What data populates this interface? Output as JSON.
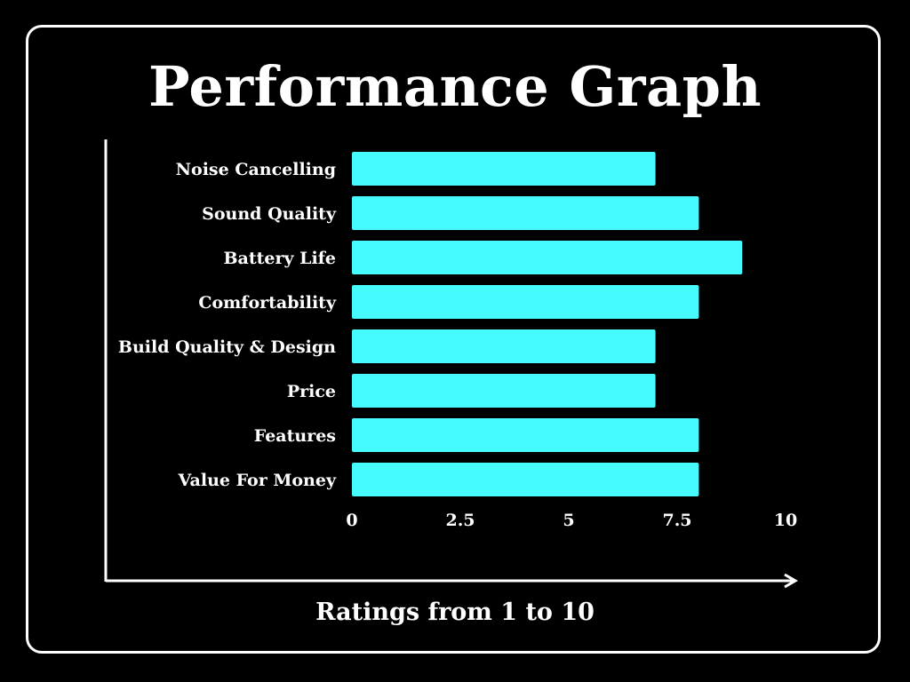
{
  "chart_data": {
    "type": "bar",
    "orientation": "horizontal",
    "title": "Performance Graph",
    "xlabel": "Ratings from 1 to 10",
    "ylabel": "",
    "categories": [
      "Noise Cancelling",
      "Sound Quality",
      "Battery Life",
      "Comfortability",
      "Build Quality & Design",
      "Price",
      "Features",
      "Value For Money"
    ],
    "values": [
      7,
      8,
      9,
      8,
      7,
      7,
      8,
      8
    ],
    "xlim": [
      0,
      10
    ],
    "xticks": [
      "0",
      "2.5",
      "5",
      "7.5",
      "10"
    ],
    "grid": false,
    "legend": "none"
  },
  "colors": {
    "background": "#000000",
    "bar": "#45fbff",
    "text": "#ffffff",
    "axis": "#ffffff"
  }
}
